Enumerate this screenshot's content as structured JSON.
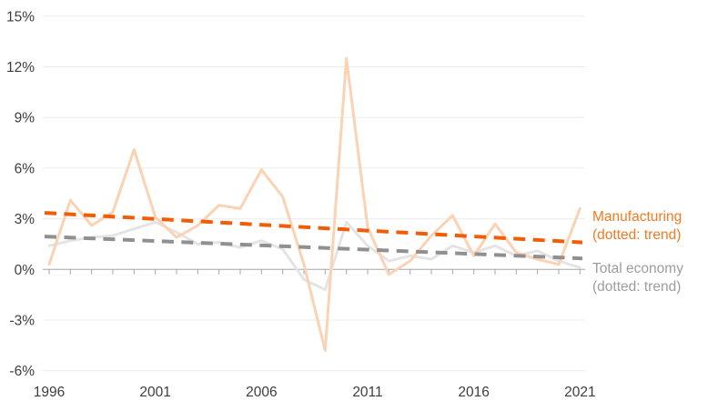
{
  "chart_data": {
    "type": "line",
    "title": "",
    "x": [
      1996,
      1997,
      1998,
      1999,
      2000,
      2001,
      2002,
      2003,
      2004,
      2005,
      2006,
      2007,
      2008,
      2009,
      2010,
      2011,
      2012,
      2013,
      2014,
      2015,
      2016,
      2017,
      2018,
      2019,
      2020,
      2021
    ],
    "x_axis_tick_labels": [
      "1996",
      "2001",
      "2006",
      "2011",
      "2016",
      "2021"
    ],
    "x_axis_tick_years": [
      1996,
      2001,
      2006,
      2011,
      2016,
      2021
    ],
    "y_axis_ticks": [
      15,
      12,
      9,
      6,
      3,
      0,
      -3,
      -6
    ],
    "y_axis_tick_labels": [
      "15%",
      "12%",
      "9%",
      "6%",
      "3%",
      "0%",
      "-3%",
      "-6%"
    ],
    "ylim": [
      -6.5,
      15.5
    ],
    "grid": "horizontal-only",
    "legend_position": "right-outside",
    "series": [
      {
        "name": "Manufacturing",
        "style": "solid",
        "color": "#fbd2b3",
        "values": [
          0.3,
          4.1,
          2.6,
          3.4,
          7.1,
          3.1,
          1.9,
          2.6,
          3.8,
          3.6,
          5.9,
          4.3,
          0.3,
          -4.8,
          12.5,
          2.5,
          -0.3,
          0.5,
          2.0,
          3.2,
          0.8,
          2.7,
          1.0,
          0.6,
          0.3,
          3.6
        ]
      },
      {
        "name": "Total economy",
        "style": "solid",
        "color": "#e4e4e4",
        "values": [
          1.4,
          1.7,
          1.9,
          2.0,
          2.4,
          2.8,
          2.2,
          1.5,
          1.6,
          1.3,
          1.7,
          1.2,
          -0.6,
          -1.2,
          2.8,
          1.4,
          0.5,
          0.8,
          0.6,
          1.4,
          1.0,
          1.4,
          0.8,
          1.1,
          0.5,
          0.1
        ]
      },
      {
        "name": "Manufacturing trend",
        "style": "dashed",
        "color": "#f25c05",
        "trend_start_value": 3.35,
        "trend_end_value": 1.6
      },
      {
        "name": "Total economy trend",
        "style": "dashed",
        "color": "#909090",
        "trend_start_value": 1.95,
        "trend_end_value": 0.65
      }
    ]
  },
  "legend": {
    "manufacturing": {
      "line1": "Manufacturing",
      "line2": "(dotted: trend)",
      "color": "#f4791f"
    },
    "total": {
      "line1": "Total economy",
      "line2": "(dotted: trend)",
      "color": "#9d9d9d"
    }
  },
  "colors": {
    "gridline": "#ececec",
    "axis": "#a6a6a6",
    "tick_label": "#3d3d3d"
  }
}
